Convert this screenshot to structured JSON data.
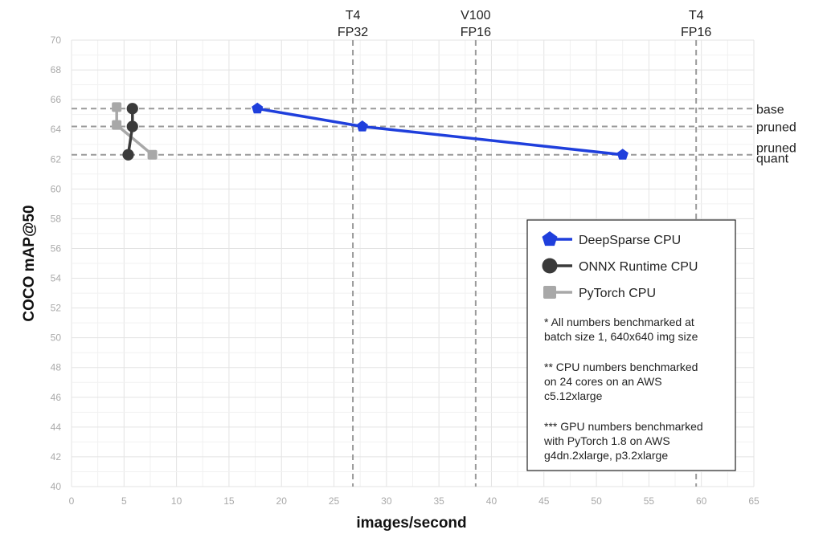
{
  "chart_data": {
    "type": "line",
    "xlabel": "images/second",
    "ylabel": "COCO mAP@50",
    "xlim": [
      0,
      65
    ],
    "ylim": [
      40,
      70
    ],
    "xticks": [
      0,
      5,
      10,
      15,
      20,
      25,
      30,
      35,
      40,
      45,
      50,
      55,
      60,
      65
    ],
    "yticks": [
      40,
      42,
      44,
      46,
      48,
      50,
      52,
      54,
      56,
      58,
      60,
      62,
      64,
      66,
      68,
      70
    ],
    "grid": true,
    "legend_position": "lower-right",
    "series": [
      {
        "name": "DeepSparse CPU",
        "color": "#1f3fdc",
        "marker": "pentagon",
        "points": [
          {
            "x": 17.7,
            "y": 65.4
          },
          {
            "x": 27.7,
            "y": 64.2
          },
          {
            "x": 52.5,
            "y": 62.3
          }
        ]
      },
      {
        "name": "ONNX Runtime CPU",
        "color": "#3a3a3a",
        "marker": "circle",
        "points": [
          {
            "x": 5.8,
            "y": 65.4
          },
          {
            "x": 5.8,
            "y": 64.2
          },
          {
            "x": 5.4,
            "y": 62.3
          }
        ]
      },
      {
        "name": "PyTorch CPU",
        "color": "#a8a8a8",
        "marker": "square",
        "points": [
          {
            "x": 4.3,
            "y": 65.5
          },
          {
            "x": 4.3,
            "y": 64.3
          },
          {
            "x": 7.7,
            "y": 62.3
          }
        ]
      }
    ],
    "reference_lines": {
      "vertical": [
        {
          "x": 26.8,
          "label_line1": "T4",
          "label_line2": "FP32"
        },
        {
          "x": 38.5,
          "label_line1": "V100",
          "label_line2": "FP16"
        },
        {
          "x": 59.5,
          "label_line1": "T4",
          "label_line2": "FP16"
        }
      ],
      "horizontal": [
        {
          "y": 65.4,
          "label_line1": "base",
          "label_line2": ""
        },
        {
          "y": 64.2,
          "label_line1": "pruned",
          "label_line2": ""
        },
        {
          "y": 62.3,
          "label_line1": "pruned",
          "label_line2": "quant"
        }
      ]
    },
    "notes": [
      [
        "* All numbers benchmarked at",
        "batch size 1, 640x640 img size"
      ],
      [
        "** CPU numbers benchmarked",
        "on 24 cores on an AWS",
        "c5.12xlarge"
      ],
      [
        "*** GPU numbers benchmarked",
        "with PyTorch 1.8 on AWS",
        "g4dn.2xlarge, p3.2xlarge"
      ]
    ]
  }
}
